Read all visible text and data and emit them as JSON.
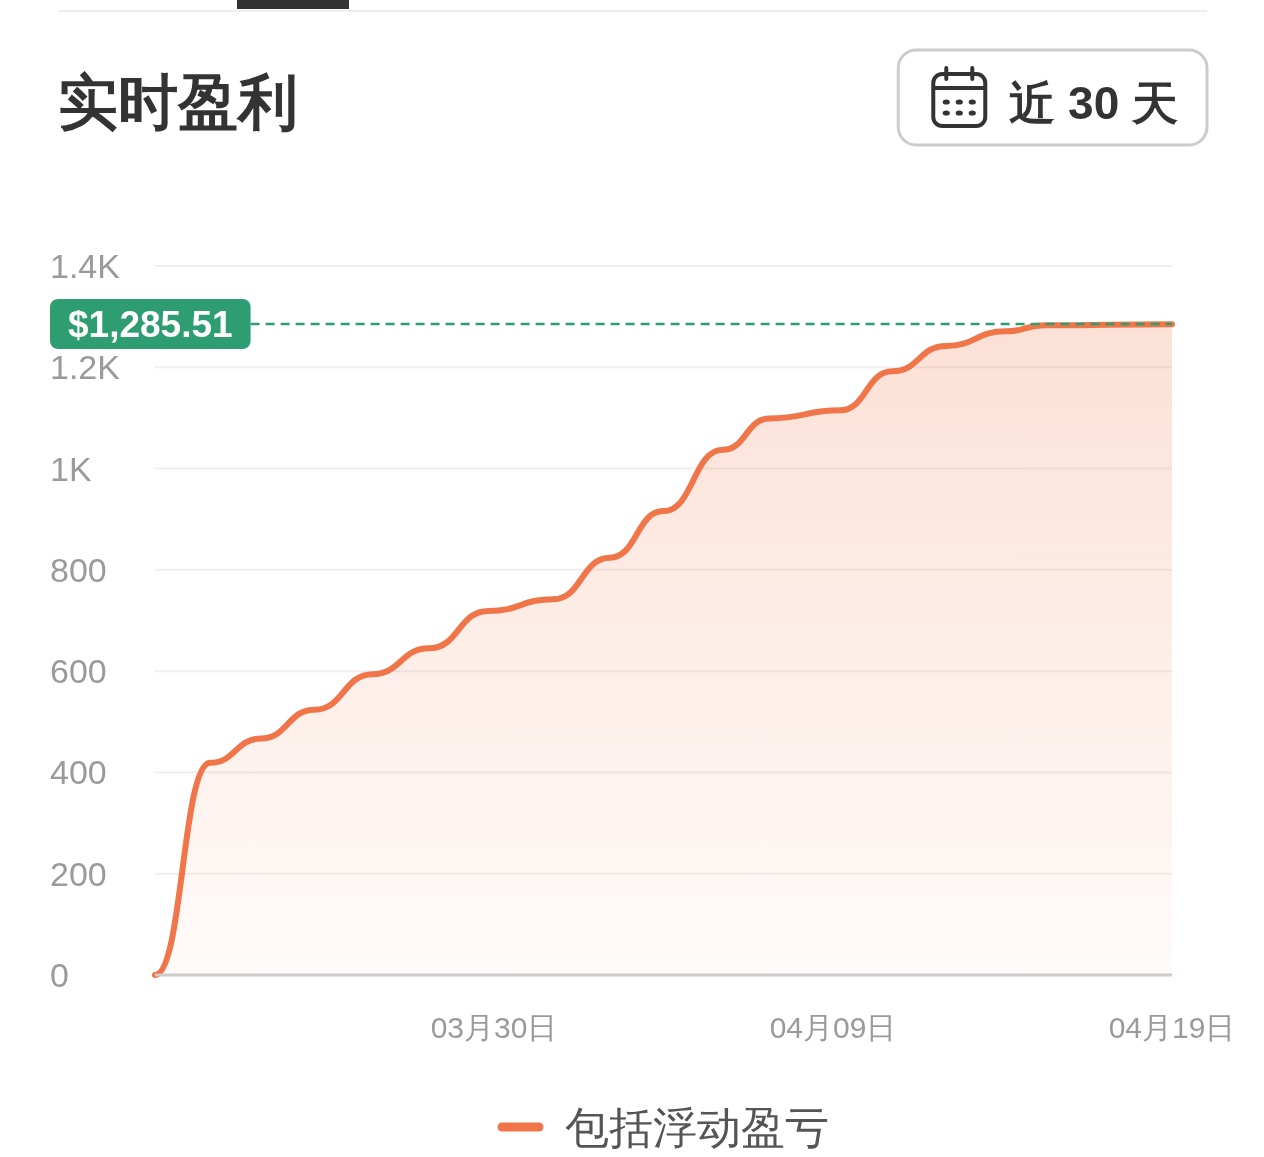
{
  "chart_data": {
    "type": "area",
    "title": "实时盈利",
    "annotations": [
      "近 30 天"
    ],
    "x": [
      "--03-20T00:00",
      "--03-21T15:00",
      "--03-23T03:00",
      "--03-24T17:00",
      "--03-26T10:00",
      "--03-28T02:00",
      "--03-29T20:00",
      "--03-31T18:00",
      "--04-02T10:00",
      "--04-04T00:00",
      "--04-05T18:00",
      "--04-07T03:00",
      "--04-09T05:00",
      "--04-10T18:00",
      "--04-12T08:00",
      "--04-14T02:00",
      "--04-15T06:00",
      "--04-19T00:00"
    ],
    "series": [
      {
        "name": "包括浮动盈亏",
        "color": "#f07548",
        "values": [
          0,
          419,
          467,
          524,
          594,
          645,
          719,
          742,
          824,
          916,
          1037,
          1099,
          1115,
          1192,
          1242,
          1271,
          1283,
          1285
        ]
      }
    ],
    "xlim": [
      "--03-20",
      "--04-19"
    ],
    "xticks": [
      {
        "value": "--03-30",
        "label": "03月30日"
      },
      {
        "value": "--04-09",
        "label": "04月09日"
      },
      {
        "value": "--04-19",
        "label": "04月19日"
      }
    ],
    "ylim": [
      0,
      1400
    ],
    "yticks": [
      0,
      200,
      400,
      600,
      800,
      {
        "value": 1000,
        "label": "1K"
      },
      {
        "value": 1200,
        "label": "1.2K"
      },
      {
        "value": 1400,
        "label": "1.4K"
      }
    ],
    "grid": "y",
    "legend": "bottom",
    "ref_lines": [
      {
        "axis": "y",
        "value": 1285.51,
        "label": "$1,285.51",
        "color": "#2e9e72",
        "line_style": "dashed"
      }
    ]
  }
}
